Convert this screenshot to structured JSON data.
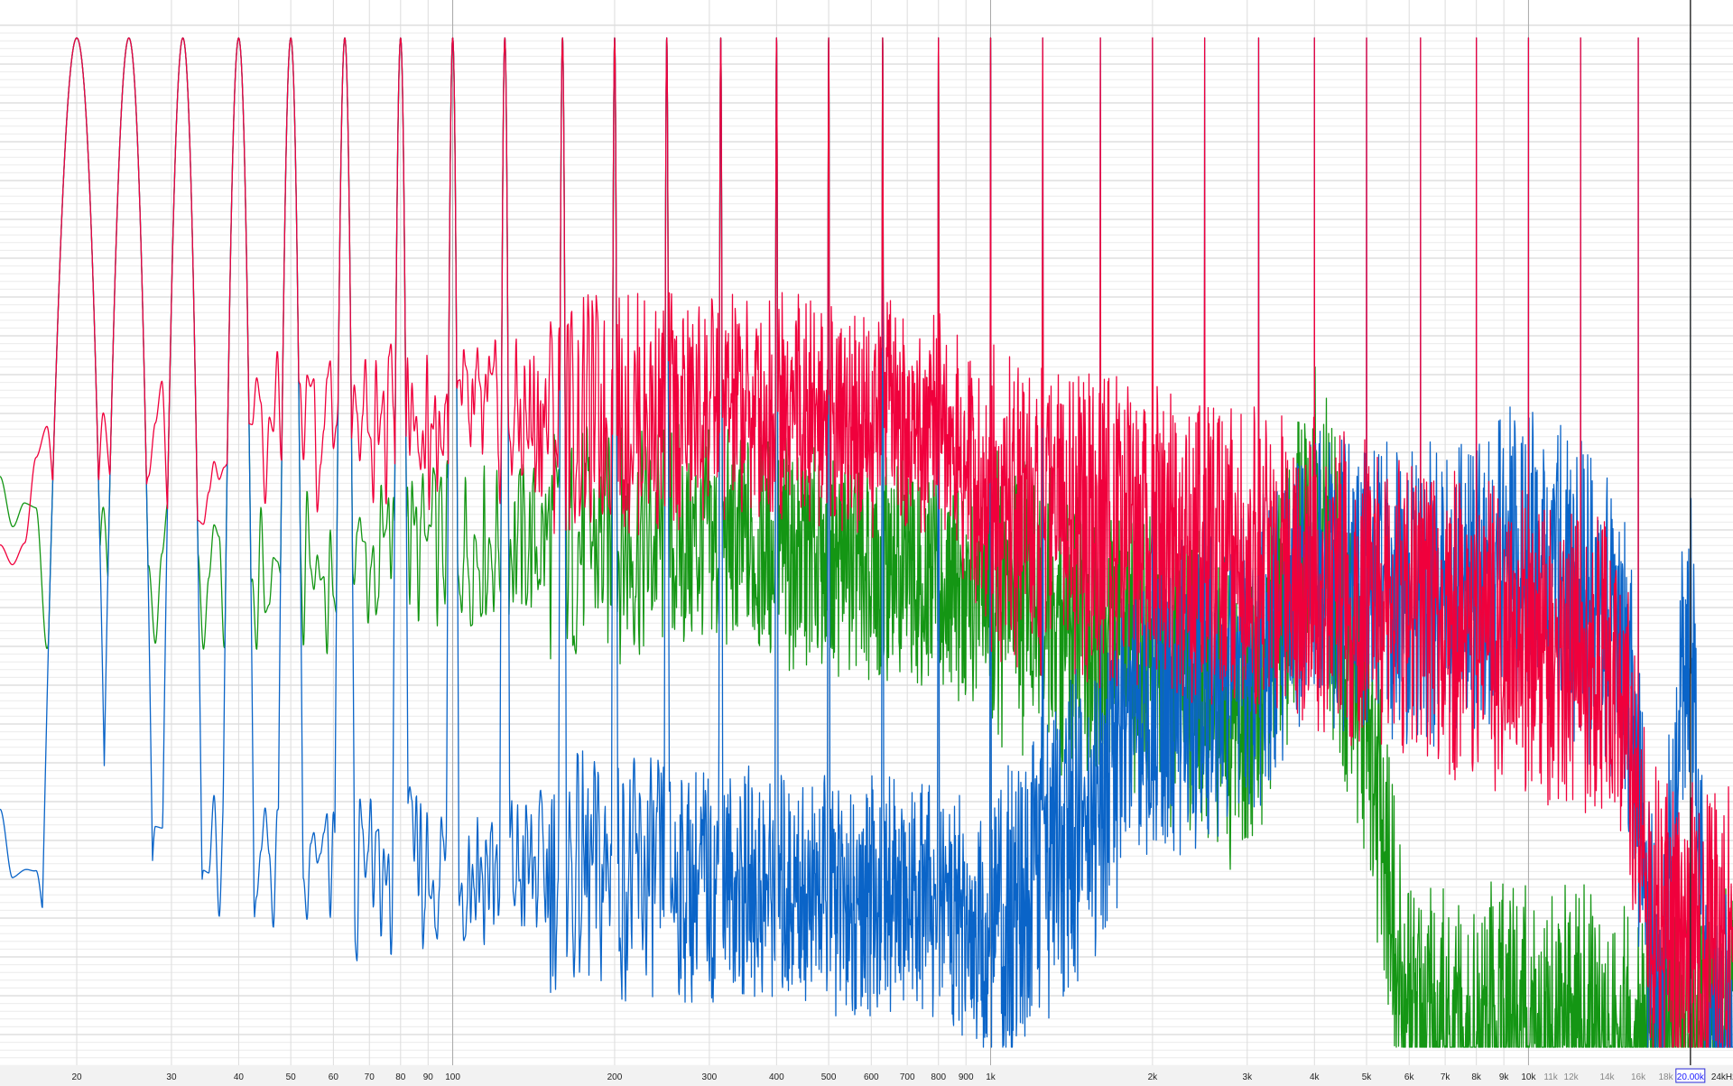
{
  "chart_data": {
    "type": "line",
    "x_scale": "log",
    "xlim": [
      14.4,
      24000
    ],
    "ylim": [
      -26,
      1
    ],
    "y_units": "relative level (major gridline divisions; no labels printed)",
    "grid": true,
    "legend": "none",
    "x_ticks": [
      {
        "value": 20,
        "label": "20"
      },
      {
        "value": 30,
        "label": "30"
      },
      {
        "value": 40,
        "label": "40"
      },
      {
        "value": 50,
        "label": "50"
      },
      {
        "value": 60,
        "label": "60"
      },
      {
        "value": 70,
        "label": "70"
      },
      {
        "value": 80,
        "label": "80"
      },
      {
        "value": 90,
        "label": "90"
      },
      {
        "value": 100,
        "label": "100"
      },
      {
        "value": 200,
        "label": "200"
      },
      {
        "value": 300,
        "label": "300"
      },
      {
        "value": 400,
        "label": "400"
      },
      {
        "value": 500,
        "label": "500"
      },
      {
        "value": 600,
        "label": "600"
      },
      {
        "value": 700,
        "label": "700"
      },
      {
        "value": 800,
        "label": "800"
      },
      {
        "value": 900,
        "label": "900"
      },
      {
        "value": 1000,
        "label": "1k"
      },
      {
        "value": 2000,
        "label": "2k"
      },
      {
        "value": 3000,
        "label": "3k"
      },
      {
        "value": 4000,
        "label": "4k"
      },
      {
        "value": 5000,
        "label": "5k"
      },
      {
        "value": 6000,
        "label": "6k"
      },
      {
        "value": 7000,
        "label": "7k"
      },
      {
        "value": 8000,
        "label": "8k"
      },
      {
        "value": 9000,
        "label": "9k"
      },
      {
        "value": 10000,
        "label": "10k"
      },
      {
        "value": 11000,
        "label": "11k",
        "dim": true
      },
      {
        "value": 12000,
        "label": "12k",
        "dim": true
      },
      {
        "value": 14000,
        "label": "14k",
        "dim": true
      },
      {
        "value": 16000,
        "label": "16k",
        "dim": true
      },
      {
        "value": 18000,
        "label": "18k",
        "dim": true
      },
      {
        "value": 24000,
        "label": "24kHz"
      }
    ],
    "cursor": {
      "value": 20000,
      "label": "20.00k"
    },
    "tone_frequencies": [
      20,
      25,
      31.5,
      40,
      50,
      63,
      80,
      100,
      125,
      160,
      200,
      250,
      315,
      400,
      500,
      630,
      800,
      1000,
      1250,
      1600,
      2000,
      2500,
      3150,
      4000,
      5000,
      6300,
      8000,
      10000,
      12500,
      16000,
      20000
    ],
    "series": [
      {
        "color": "#149614",
        "tone_peak_level": 0,
        "tones_up_to": 1000,
        "noise_floor": [
          [
            14,
            -13.4
          ],
          [
            20,
            -13.9
          ],
          [
            50,
            -13.9
          ],
          [
            100,
            -13.0
          ],
          [
            300,
            -13.0
          ],
          [
            800,
            -13.9
          ],
          [
            1500,
            -15.3
          ],
          [
            2000,
            -15.8
          ],
          [
            3000,
            -17.6
          ],
          [
            4000,
            -12.0
          ],
          [
            5000,
            -17.6
          ],
          [
            6000,
            -25.8
          ],
          [
            24000,
            -25.8
          ]
        ]
      },
      {
        "color": "#0a64c8",
        "tone_peak_level": 0,
        "tones_up_to": 20000,
        "noise_floor": [
          [
            14,
            -21.8
          ],
          [
            20,
            -21.1
          ],
          [
            60,
            -21.8
          ],
          [
            100,
            -21.3
          ],
          [
            300,
            -21.8
          ],
          [
            800,
            -22.3
          ],
          [
            1000,
            -23.2
          ],
          [
            1500,
            -20.0
          ],
          [
            2000,
            -17.2
          ],
          [
            3000,
            -16.2
          ],
          [
            4000,
            -14.1
          ],
          [
            6000,
            -14.4
          ],
          [
            10000,
            -13.4
          ],
          [
            15000,
            -15.3
          ],
          [
            17500,
            -25.8
          ],
          [
            19000,
            -17.6
          ],
          [
            20000,
            -15.3
          ],
          [
            21500,
            -25.8
          ],
          [
            24000,
            -25.8
          ]
        ]
      },
      {
        "color": "#f0003c",
        "tone_peak_level": 0,
        "tones_up_to": 16000,
        "noise_floor": [
          [
            14,
            -11.6
          ],
          [
            20,
            -11.1
          ],
          [
            50,
            -10.2
          ],
          [
            100,
            -10.0
          ],
          [
            200,
            -9.7
          ],
          [
            500,
            -9.5
          ],
          [
            800,
            -10.0
          ],
          [
            1000,
            -12.0
          ],
          [
            2000,
            -13.0
          ],
          [
            4000,
            -13.9
          ],
          [
            8000,
            -15.3
          ],
          [
            12500,
            -15.8
          ],
          [
            15000,
            -16.7
          ],
          [
            17000,
            -22.7
          ],
          [
            24000,
            -23.4
          ]
        ]
      }
    ]
  }
}
